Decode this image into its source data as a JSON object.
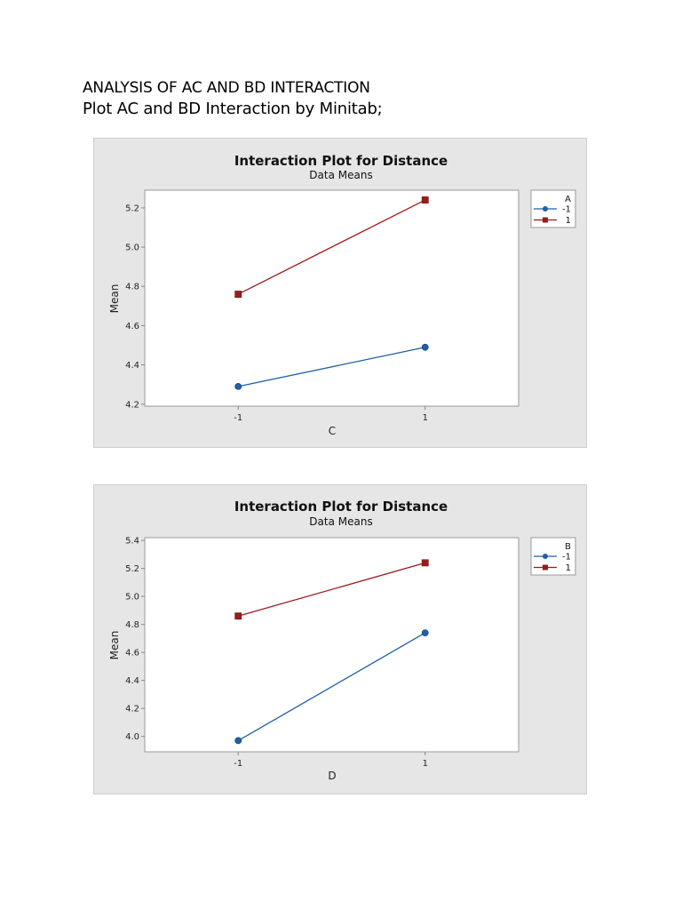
{
  "document": {
    "heading": "ANALYSIS OF AC AND BD INTERACTION",
    "subheading": "Plot AC and BD Interaction by Minitab;"
  },
  "colors": {
    "series_neg1": "#1f5fa8",
    "series_pos1": "#9b1b1b",
    "panel_bg": "#e6e6e6",
    "plot_bg": "#ffffff"
  },
  "chart_data": [
    {
      "type": "line",
      "title": "Interaction Plot for Distance",
      "subtitle": "Data Means",
      "xlabel": "C",
      "ylabel": "Mean",
      "categories": [
        "-1",
        "1"
      ],
      "x": [
        -1,
        1
      ],
      "ylim": [
        4.19,
        5.29
      ],
      "yticks": [
        4.2,
        4.4,
        4.6,
        4.8,
        5.0,
        5.2
      ],
      "ytick_labels": [
        "4.2",
        "4.4",
        "4.6",
        "4.8",
        "5.0",
        "5.2"
      ],
      "grid": false,
      "legend": {
        "title": "A",
        "position": "right",
        "entries": [
          "-1",
          "1"
        ]
      },
      "series": [
        {
          "name": "-1",
          "marker": "circle",
          "color": "#1f5fa8",
          "values": [
            4.29,
            4.49
          ]
        },
        {
          "name": "1",
          "marker": "square",
          "color": "#9b1b1b",
          "values": [
            4.76,
            5.24
          ]
        }
      ]
    },
    {
      "type": "line",
      "title": "Interaction Plot for Distance",
      "subtitle": "Data Means",
      "xlabel": "D",
      "ylabel": "Mean",
      "categories": [
        "-1",
        "1"
      ],
      "x": [
        -1,
        1
      ],
      "ylim": [
        3.89,
        5.42
      ],
      "yticks": [
        4.0,
        4.2,
        4.4,
        4.6,
        4.8,
        5.0,
        5.2,
        5.4
      ],
      "ytick_labels": [
        "4.0",
        "4.2",
        "4.4",
        "4.6",
        "4.8",
        "5.0",
        "5.2",
        "5.4"
      ],
      "grid": false,
      "legend": {
        "title": "B",
        "position": "right",
        "entries": [
          "-1",
          "1"
        ]
      },
      "series": [
        {
          "name": "-1",
          "marker": "circle",
          "color": "#1f5fa8",
          "values": [
            3.97,
            4.74
          ]
        },
        {
          "name": "1",
          "marker": "square",
          "color": "#9b1b1b",
          "values": [
            4.86,
            5.24
          ]
        }
      ]
    }
  ]
}
